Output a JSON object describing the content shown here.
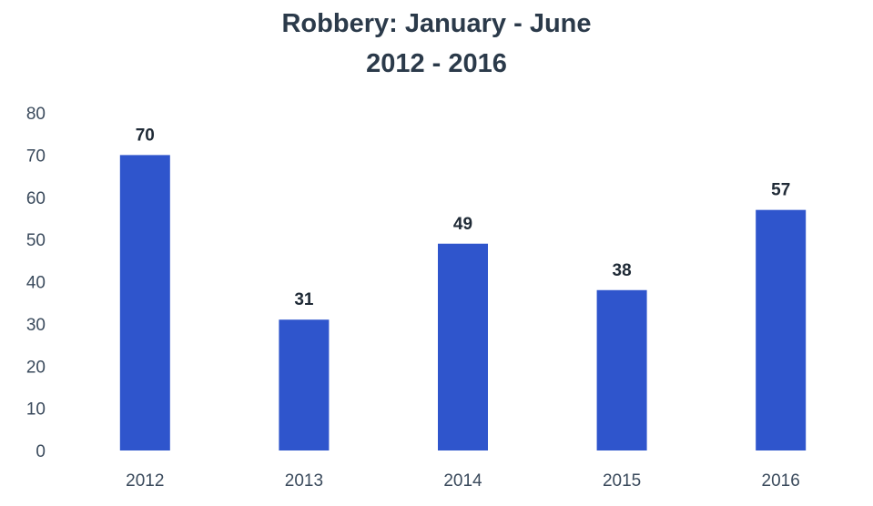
{
  "chart_data": {
    "type": "bar",
    "title": "Robbery: January - June",
    "subtitle": "2012 - 2016",
    "xlabel": "",
    "ylabel": "",
    "categories": [
      "2012",
      "2013",
      "2014",
      "2015",
      "2016"
    ],
    "values": [
      70,
      31,
      49,
      38,
      57
    ],
    "data_labels": [
      "70",
      "31",
      "49",
      "38",
      "57"
    ],
    "ylim": [
      0,
      80
    ],
    "yticks": [
      0,
      10,
      20,
      30,
      40,
      50,
      60,
      70,
      80
    ],
    "ytick_labels": [
      "0",
      "10",
      "20",
      "30",
      "40",
      "50",
      "60",
      "70",
      "80"
    ],
    "bar_color": "#2f55cc",
    "grid": false,
    "legend": "none"
  }
}
